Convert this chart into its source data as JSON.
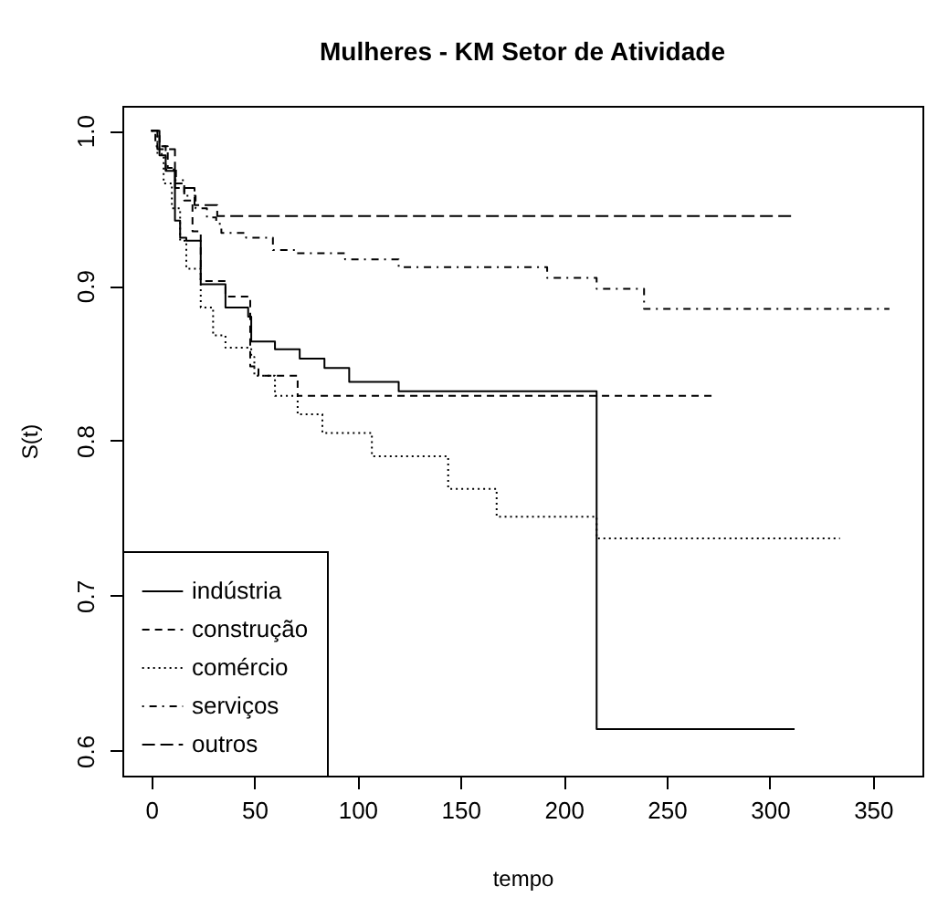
{
  "chart_data": {
    "type": "step",
    "title": "Mulheres - KM Setor de Atividade",
    "xlabel": "tempo",
    "ylabel": "S(t)",
    "xlim": [
      -14,
      374
    ],
    "ylim": [
      0.584,
      1.016
    ],
    "xticks": [
      0,
      50,
      100,
      150,
      200,
      250,
      300,
      350
    ],
    "yticks": [
      0.6,
      0.7,
      0.8,
      0.9,
      {
        "value": 1,
        "label": "1.0"
      }
    ],
    "grid": false,
    "legend": "bottom left",
    "marker": "none",
    "series": [
      {
        "name": "indústria",
        "color": "#000000",
        "line_style": "solid",
        "x": [
          0,
          4,
          7,
          11.5,
          14,
          17,
          24,
          36,
          47,
          48.5,
          60,
          72,
          84,
          96,
          120,
          216,
          312
        ],
        "values": [
          1,
          0.984,
          0.974,
          0.942,
          0.931,
          0.929,
          0.901,
          0.886,
          0.88,
          0.864,
          0.859,
          0.853,
          0.847,
          0.838,
          0.832,
          0.614,
          0.614
        ]
      },
      {
        "name": "construção",
        "color": "#000000",
        "line_style": "dashed",
        "x": [
          0,
          4,
          8,
          12,
          16,
          20,
          24,
          36,
          48,
          52,
          71,
          273
        ],
        "values": [
          1,
          0.99,
          0.976,
          0.966,
          0.955,
          0.935,
          0.903,
          0.893,
          0.848,
          0.842,
          0.829,
          0.829
        ]
      },
      {
        "name": "comércio",
        "color": "#000000",
        "line_style": "dotted",
        "x": [
          0,
          3,
          6,
          10,
          14,
          17,
          24,
          30,
          36,
          48.5,
          50,
          60,
          71,
          83,
          107,
          144,
          167.5,
          216,
          334
        ],
        "values": [
          1,
          0.985,
          0.966,
          0.95,
          0.929,
          0.911,
          0.886,
          0.868,
          0.86,
          0.854,
          0.842,
          0.829,
          0.817,
          0.805,
          0.79,
          0.769,
          0.751,
          0.737,
          0.737
        ]
      },
      {
        "name": "serviços",
        "color": "#000000",
        "line_style": "dashdot",
        "x": [
          0,
          2,
          7,
          11.5,
          16,
          21.5,
          27,
          31.5,
          34,
          46,
          59,
          70,
          94,
          120,
          192,
          216,
          239,
          358
        ],
        "values": [
          1,
          0.99,
          0.975,
          0.968,
          0.958,
          0.95,
          0.944,
          0.94,
          0.934,
          0.931,
          0.923,
          0.921,
          0.917,
          0.912,
          0.905,
          0.898,
          0.885,
          0.885
        ]
      },
      {
        "name": "outros",
        "color": "#000000",
        "line_style": "longdash",
        "x": [
          0,
          3,
          11.5,
          21,
          32,
          311
        ],
        "values": [
          1,
          0.988,
          0.963,
          0.952,
          0.945,
          0.945
        ]
      }
    ]
  }
}
